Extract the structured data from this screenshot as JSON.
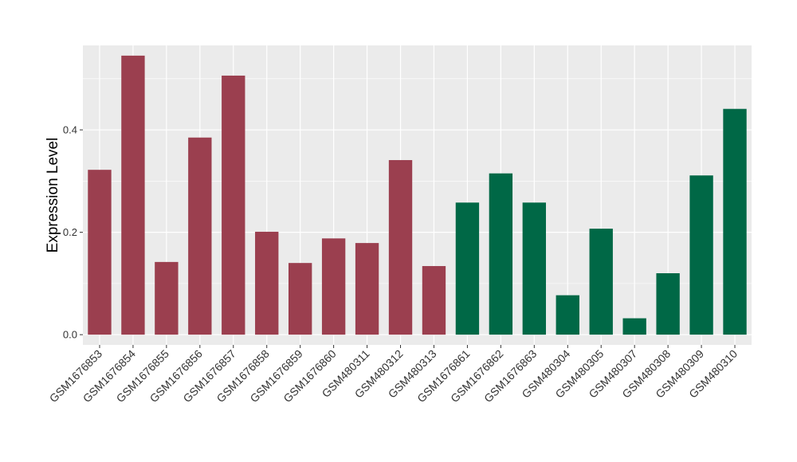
{
  "chart_data": {
    "type": "bar",
    "title": "",
    "xlabel": "",
    "ylabel": "Expression Level",
    "ylim": [
      -0.02,
      0.565
    ],
    "yticks": [
      0.0,
      0.2,
      0.4
    ],
    "ytick_labels": [
      "0.0",
      "0.2",
      "0.4"
    ],
    "grid": true,
    "legend": "none",
    "categories": [
      "GSM1676853",
      "GSM1676854",
      "GSM1676855",
      "GSM1676856",
      "GSM1676857",
      "GSM1676858",
      "GSM1676859",
      "GSM1676860",
      "GSM480311",
      "GSM480312",
      "GSM480313",
      "GSM1676861",
      "GSM1676862",
      "GSM1676863",
      "GSM480304",
      "GSM480305",
      "GSM480307",
      "GSM480308",
      "GSM480309",
      "GSM480310"
    ],
    "values": [
      0.322,
      0.545,
      0.142,
      0.385,
      0.506,
      0.201,
      0.14,
      0.188,
      0.179,
      0.341,
      0.134,
      0.258,
      0.315,
      0.258,
      0.077,
      0.207,
      0.032,
      0.12,
      0.311,
      0.441
    ],
    "groups": [
      0,
      0,
      0,
      0,
      0,
      0,
      0,
      0,
      0,
      0,
      0,
      1,
      1,
      1,
      1,
      1,
      1,
      1,
      1,
      1
    ],
    "group_colors": [
      "#9B3F4F",
      "#006846"
    ],
    "panel_background": "#EBEBEB",
    "grid_color": "#FFFFFF"
  }
}
